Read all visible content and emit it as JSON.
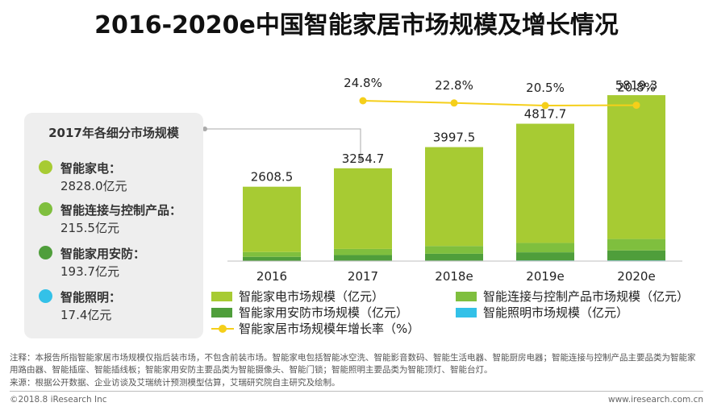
{
  "title": "2016-2020e中国智能家居市场规模及增长情况",
  "panel": {
    "title": "2017年各细分市场规模",
    "items": [
      {
        "label": "智能家电：",
        "value": "2828.0亿元",
        "color": "#a7cb33"
      },
      {
        "label": "智能连接与控制产品：",
        "value": "215.5亿元",
        "color": "#7fbf3e"
      },
      {
        "label": "智能家用安防：",
        "value": "193.7亿元",
        "color": "#4f9e3b"
      },
      {
        "label": "智能照明：",
        "value": "17.4亿元",
        "color": "#33c1e8"
      }
    ]
  },
  "legend": {
    "appliance": "智能家电市场规模（亿元）",
    "connect": "智能连接与控制产品市场规模（亿元）",
    "security": "智能家用安防市场规模（亿元）",
    "lighting": "智能照明市场规模（亿元）",
    "growth": "智能家居市场规模年增长率（%）"
  },
  "note": "注释：本报告所指智能家居市场规模仅指后装市场，不包含前装市场。智能家电包括智能冰空洗、智能影音数码、智能生活电器、智能厨房电器；智能连接与控制产品主要品类为智能家用路由器、智能插座、智能插线板；智能家用安防主要品类为智能摄像头、智能门锁；智能照明主要品类为智能顶灯、智能台灯。",
  "source": "来源：根据公开数据、企业访谈及艾瑞统计预测模型估算，艾瑞研究院自主研究及绘制。",
  "footer_left": "©2018.8 iResearch Inc",
  "footer_right": "www.iresearch.com.cn",
  "chart_data": {
    "type": "bar",
    "title": "2016-2020e中国智能家居市场规模及增长情况",
    "categories": [
      "2016",
      "2017",
      "2018e",
      "2019e",
      "2020e"
    ],
    "totals": [
      2608.5,
      3254.7,
      3997.5,
      4817.7,
      5819.3
    ],
    "total_labels": [
      "2608.5",
      "3254.7",
      "3997.5",
      "4817.7",
      "5819.3"
    ],
    "series": [
      {
        "name": "智能家电市场规模（亿元）",
        "color": "#a7cb33",
        "values": [
          2290,
          2828.0,
          3470,
          4180,
          5045
        ]
      },
      {
        "name": "智能连接与控制产品市场规模（亿元）",
        "color": "#7fbf3e",
        "values": [
          170,
          215.5,
          270,
          330,
          400
        ]
      },
      {
        "name": "智能家用安防市场规模（亿元）",
        "color": "#4f9e3b",
        "values": [
          138,
          193.7,
          240,
          285,
          350
        ]
      },
      {
        "name": "智能照明市场规模（亿元）",
        "color": "#33c1e8",
        "values": [
          10.5,
          17.4,
          17.5,
          22.7,
          24.3
        ]
      }
    ],
    "growth": {
      "name": "智能家居市场规模年增长率（%）",
      "color": "#f5cf1a",
      "categories": [
        "2017",
        "2018e",
        "2019e",
        "2020e"
      ],
      "values": [
        24.8,
        22.8,
        20.5,
        20.8
      ],
      "labels": [
        "24.8%",
        "22.8%",
        "20.5%",
        "20.8%"
      ]
    },
    "ylim": [
      0,
      6500
    ],
    "grid": false,
    "legend_position": "bottom"
  }
}
